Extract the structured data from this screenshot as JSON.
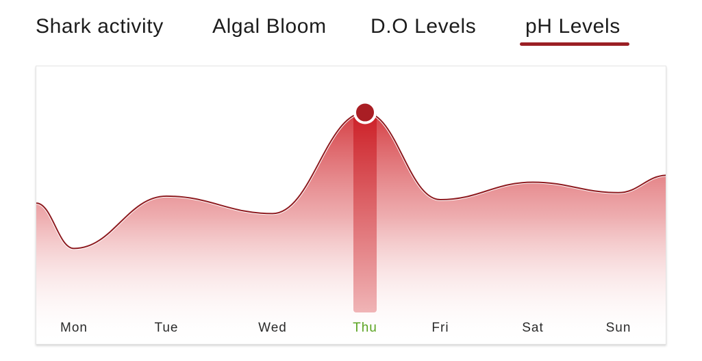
{
  "tabs": [
    {
      "label": "Shark activity",
      "active": false
    },
    {
      "label": "Algal Bloom",
      "active": false
    },
    {
      "label": "D.O Levels",
      "active": false
    },
    {
      "label": "pH Levels",
      "active": true
    }
  ],
  "colors": {
    "accent": "#9b1f24",
    "line": "#8e1a1f",
    "fill_top": "#d0262c",
    "selected_label": "#5aa321",
    "label": "#2a2a2a"
  },
  "chart_data": {
    "type": "area",
    "categories": [
      "Mon",
      "Tue",
      "Wed",
      "Thu",
      "Fri",
      "Sat",
      "Sun"
    ],
    "selected_index": 3,
    "grid": false,
    "legend": "none",
    "y_axis_visible": false,
    "series": [
      {
        "x": [
          "Mon",
          "Tue",
          "Wed",
          "Thu",
          "Fri",
          "Sat",
          "Sun"
        ],
        "values": [
          3.6,
          5.1,
          4.6,
          7.5,
          5.0,
          5.5,
          5.2
        ]
      }
    ],
    "edge_values": {
      "start": 4.9,
      "end": 5.7
    }
  }
}
